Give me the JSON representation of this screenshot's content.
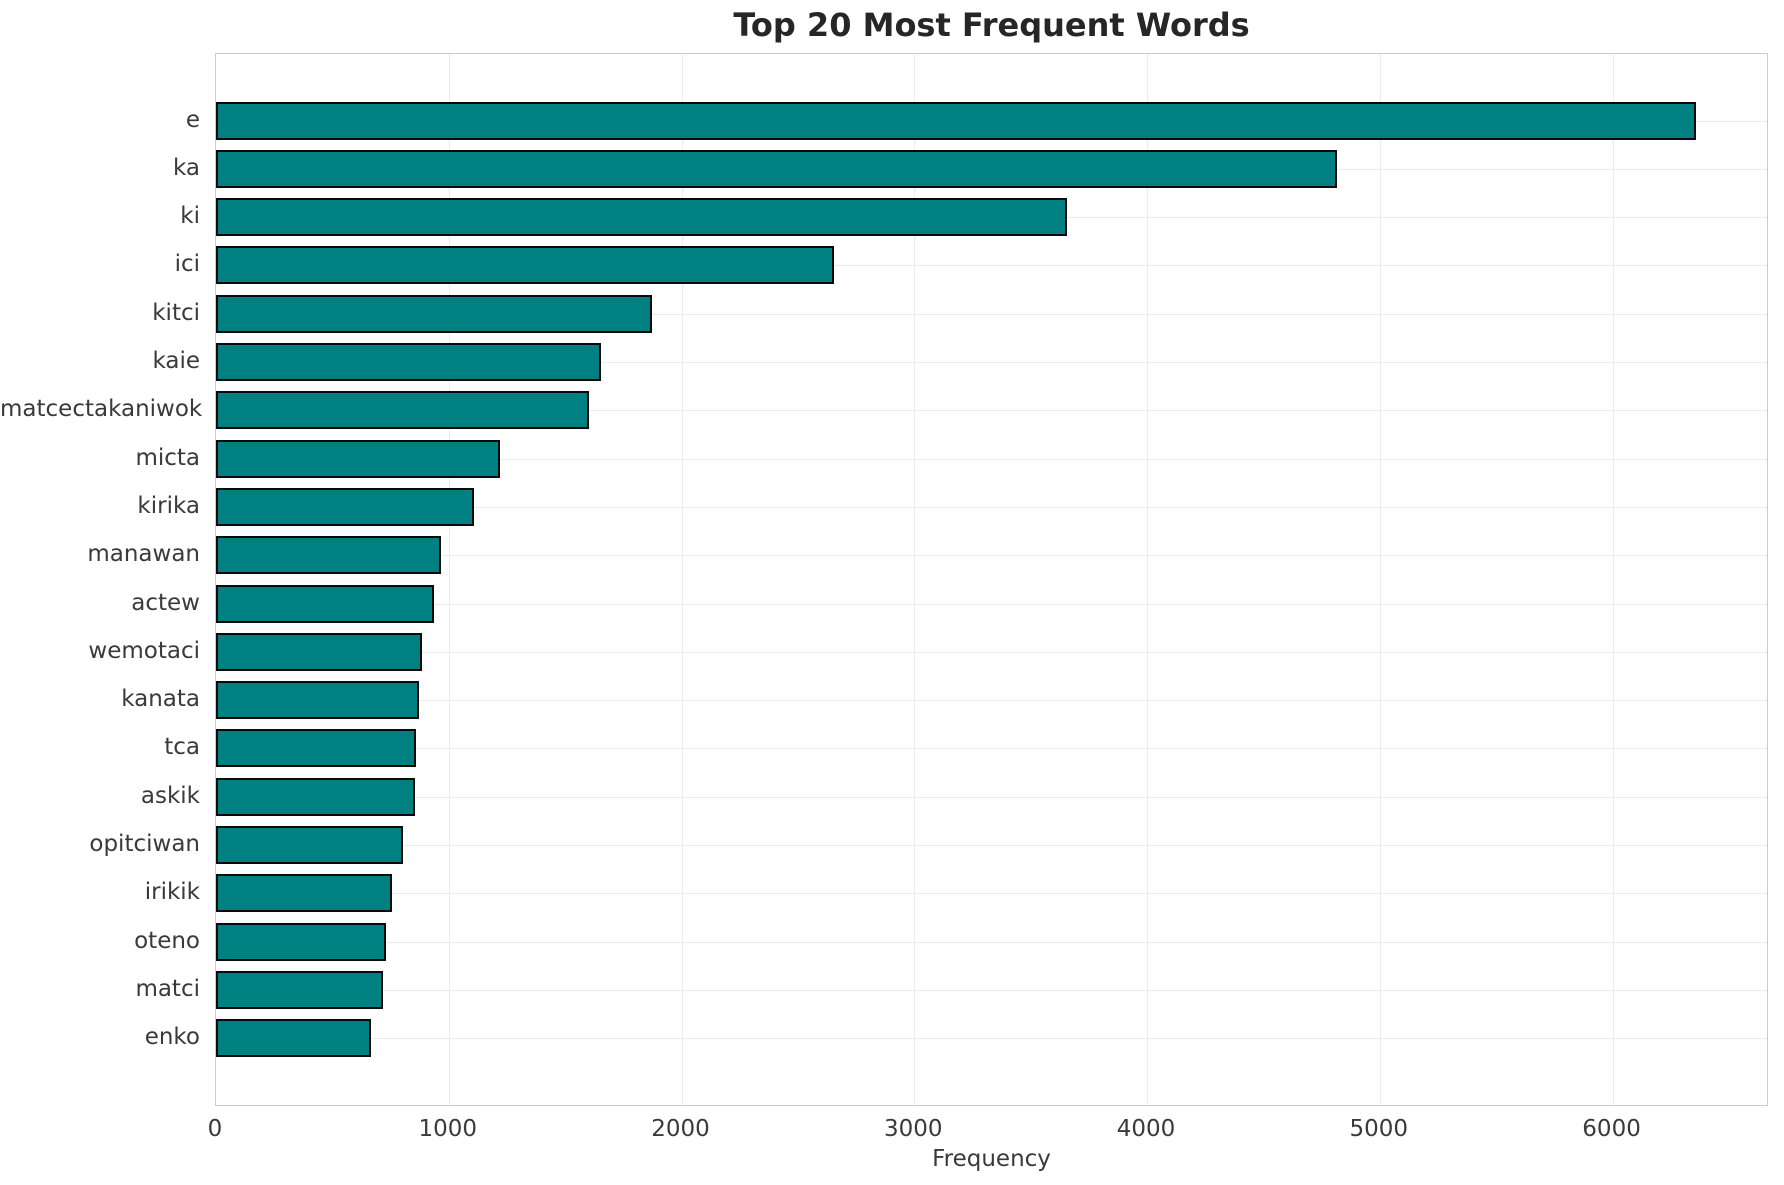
{
  "chart_data": {
    "type": "bar",
    "orientation": "horizontal",
    "title": "Top 20 Most Frequent Words",
    "xlabel": "Frequency",
    "ylabel": "",
    "categories": [
      "e",
      "ka",
      "ki",
      "ici",
      "kitci",
      "kaie",
      "matcectakaniwok",
      "micta",
      "kirika",
      "manawan",
      "actew",
      "wemotaci",
      "kanata",
      "tca",
      "askik",
      "opitciwan",
      "irikik",
      "oteno",
      "matci",
      "enko"
    ],
    "values": [
      6360,
      4815,
      3655,
      2653,
      1874,
      1656,
      1604,
      1222,
      1110,
      966,
      937,
      887,
      870,
      861,
      855,
      805,
      754,
      729,
      719,
      668
    ],
    "x_ticks": [
      0,
      1000,
      2000,
      3000,
      4000,
      5000,
      6000
    ],
    "xlim": [
      0,
      6672
    ],
    "grid": true,
    "legend": "none",
    "bar_color": "#008080",
    "bar_edge_color": "#0a0a0a",
    "grid_color": "#ebebeb",
    "spine_color": "#cccccc",
    "text_color": "#3a3a3a",
    "title_color": "#262626",
    "background_color": "#ffffff"
  }
}
